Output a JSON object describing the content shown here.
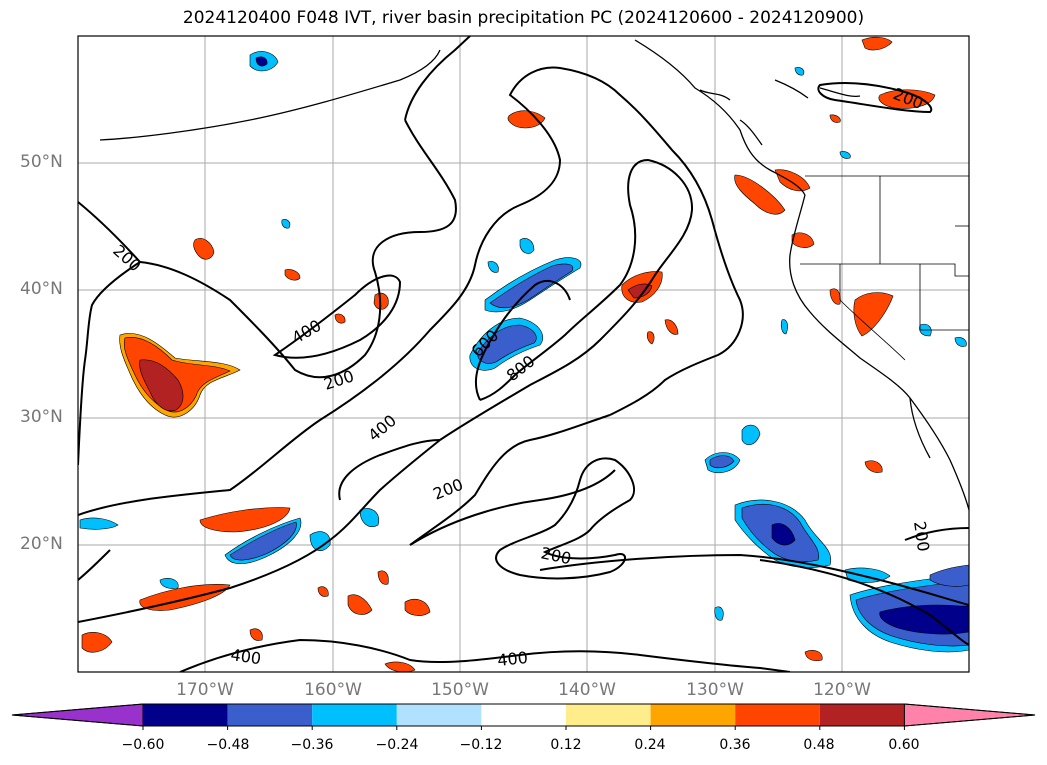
{
  "title": "2024120400 F048 IVT, river basin precipitation PC (2024120600 - 2024120900)",
  "map": {
    "latitude_labels": [
      "50°N",
      "40°N",
      "30°N",
      "20°N"
    ],
    "longitude_labels": [
      "170°W",
      "160°W",
      "150°W",
      "140°W",
      "130°W",
      "120°W"
    ],
    "contour_labels": [
      "200",
      "200",
      "200",
      "200",
      "200",
      "200",
      "400",
      "400",
      "400",
      "400",
      "600",
      "800"
    ]
  },
  "colorbar": {
    "ticks": [
      "−0.60",
      "−0.48",
      "−0.36",
      "−0.24",
      "−0.12",
      "0.12",
      "0.24",
      "0.36",
      "0.48",
      "0.60"
    ],
    "colors": [
      "#9932cc",
      "#00008b",
      "#3a5fcd",
      "#00bfff",
      "#b0e2ff",
      "#ffffff",
      "#ffec8b",
      "#ffa500",
      "#ff4500",
      "#b22222",
      "#ff82ab"
    ]
  }
}
